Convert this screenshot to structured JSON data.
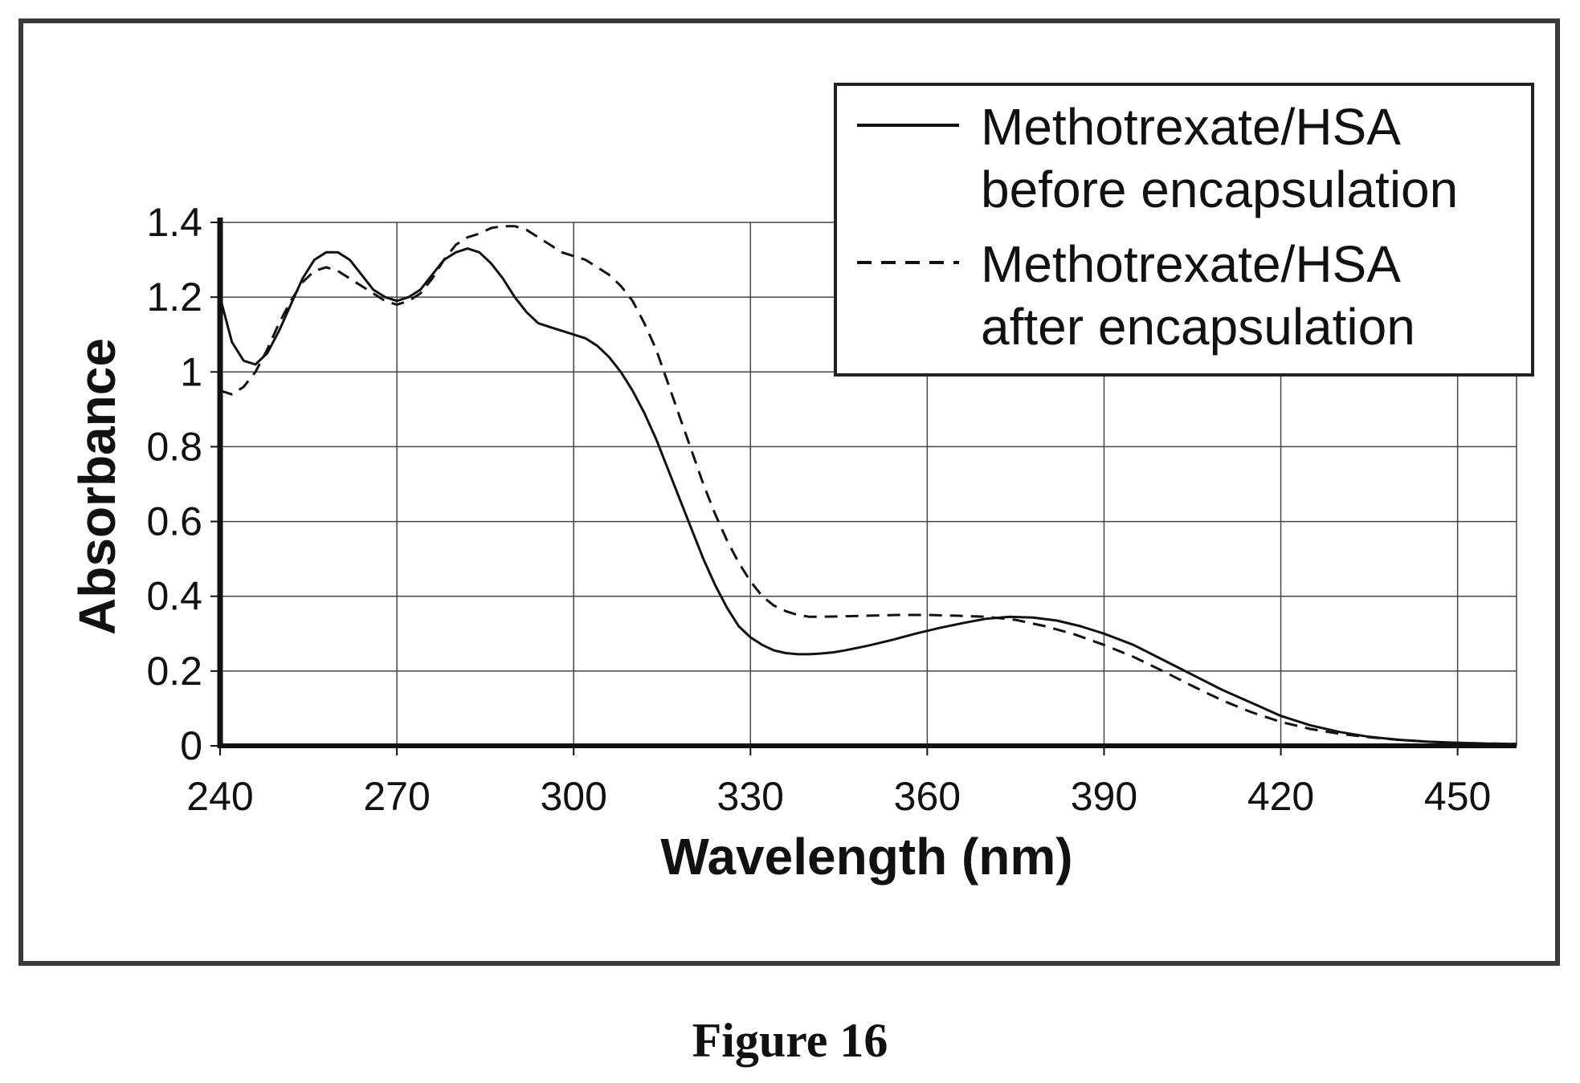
{
  "figure_caption": "Figure 16",
  "chart_data": {
    "type": "line",
    "xlabel": "Wavelength (nm)",
    "ylabel": "Absorbance",
    "xlim": [
      240,
      460
    ],
    "ylim": [
      0,
      1.4
    ],
    "xticks": [
      240,
      270,
      300,
      330,
      360,
      390,
      420,
      450
    ],
    "yticks": [
      0,
      0.2,
      0.4,
      0.6,
      0.8,
      1,
      1.2,
      1.4
    ],
    "ytick_labels": [
      "0",
      "0.2",
      "0.4",
      "0.6",
      "0.8",
      "1",
      "1.2",
      "1.4"
    ],
    "grid": true,
    "legend_position": "top-right",
    "colors": {
      "line": "#111111",
      "grid": "#444444",
      "frame": "#3a3a3a"
    },
    "series": [
      {
        "name": "Methotrexate/HSA before encapsulation",
        "style": "solid",
        "x": [
          240,
          242,
          244,
          246,
          248,
          250,
          252,
          254,
          256,
          258,
          260,
          262,
          264,
          266,
          268,
          270,
          272,
          274,
          276,
          278,
          280,
          282,
          284,
          286,
          288,
          290,
          292,
          294,
          296,
          298,
          300,
          302,
          304,
          306,
          308,
          310,
          312,
          314,
          316,
          318,
          320,
          322,
          324,
          326,
          328,
          330,
          332,
          334,
          336,
          338,
          340,
          342,
          344,
          346,
          350,
          354,
          358,
          362,
          366,
          370,
          374,
          378,
          382,
          386,
          390,
          395,
          400,
          405,
          410,
          415,
          420,
          425,
          430,
          435,
          440,
          445,
          450,
          455,
          460
        ],
        "y": [
          1.2,
          1.08,
          1.03,
          1.02,
          1.05,
          1.11,
          1.18,
          1.25,
          1.3,
          1.32,
          1.32,
          1.3,
          1.26,
          1.22,
          1.2,
          1.19,
          1.2,
          1.22,
          1.26,
          1.3,
          1.32,
          1.33,
          1.32,
          1.29,
          1.25,
          1.2,
          1.16,
          1.13,
          1.12,
          1.11,
          1.1,
          1.09,
          1.07,
          1.04,
          1.0,
          0.95,
          0.89,
          0.82,
          0.74,
          0.66,
          0.58,
          0.5,
          0.43,
          0.37,
          0.32,
          0.29,
          0.27,
          0.255,
          0.248,
          0.245,
          0.245,
          0.247,
          0.25,
          0.255,
          0.268,
          0.283,
          0.3,
          0.315,
          0.328,
          0.34,
          0.345,
          0.343,
          0.335,
          0.32,
          0.3,
          0.27,
          0.23,
          0.19,
          0.15,
          0.115,
          0.08,
          0.055,
          0.037,
          0.024,
          0.016,
          0.011,
          0.008,
          0.006,
          0.005
        ]
      },
      {
        "name": "Methotrexate/HSA after encapsulation",
        "style": "dashed",
        "x": [
          240,
          242,
          244,
          246,
          248,
          250,
          252,
          254,
          256,
          258,
          260,
          262,
          264,
          266,
          268,
          270,
          272,
          274,
          276,
          278,
          280,
          282,
          284,
          286,
          288,
          290,
          292,
          294,
          296,
          298,
          300,
          302,
          304,
          306,
          308,
          310,
          312,
          314,
          316,
          318,
          320,
          322,
          324,
          326,
          328,
          330,
          332,
          334,
          336,
          338,
          340,
          345,
          350,
          355,
          360,
          365,
          370,
          375,
          380,
          385,
          390,
          395,
          400,
          405,
          410,
          415,
          420,
          425,
          430,
          435,
          440,
          445,
          450,
          455,
          460
        ],
        "y": [
          0.95,
          0.94,
          0.96,
          1.0,
          1.06,
          1.13,
          1.19,
          1.24,
          1.27,
          1.28,
          1.27,
          1.25,
          1.23,
          1.21,
          1.19,
          1.18,
          1.19,
          1.21,
          1.25,
          1.3,
          1.34,
          1.36,
          1.37,
          1.385,
          1.39,
          1.39,
          1.38,
          1.36,
          1.34,
          1.32,
          1.31,
          1.3,
          1.28,
          1.26,
          1.23,
          1.19,
          1.13,
          1.06,
          0.97,
          0.88,
          0.79,
          0.7,
          0.62,
          0.55,
          0.49,
          0.44,
          0.4,
          0.375,
          0.36,
          0.35,
          0.345,
          0.346,
          0.348,
          0.35,
          0.35,
          0.348,
          0.345,
          0.337,
          0.32,
          0.298,
          0.27,
          0.238,
          0.2,
          0.16,
          0.122,
          0.09,
          0.064,
          0.045,
          0.032,
          0.023,
          0.016,
          0.011,
          0.008,
          0.006,
          0.005
        ]
      }
    ],
    "legend_lines": [
      [
        "Methotrexate/HSA",
        "before encapsulation"
      ],
      [
        "Methotrexate/HSA",
        "after encapsulation"
      ]
    ]
  }
}
